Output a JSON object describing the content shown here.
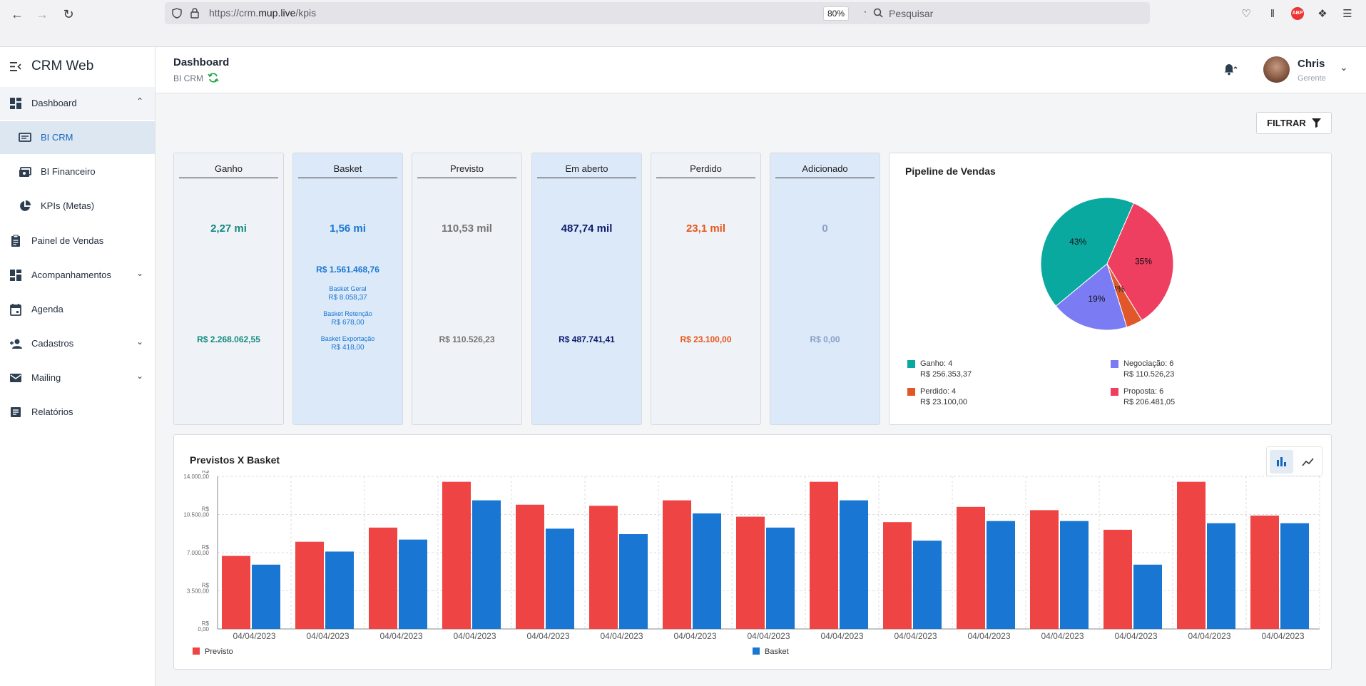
{
  "browser": {
    "url_prefix": "https://crm.",
    "url_domain": "mup.live",
    "url_path": "/kpis",
    "zoom": "80%",
    "search_placeholder": "Pesquisar"
  },
  "sidebar": {
    "brand": "CRM Web",
    "items": [
      {
        "label": "Dashboard",
        "icon": "dashboard-icon"
      },
      {
        "label": "BI CRM",
        "icon": "monitor-icon"
      },
      {
        "label": "BI Financeiro",
        "icon": "money-icon"
      },
      {
        "label": "KPIs (Metas)",
        "icon": "pie-icon"
      },
      {
        "label": "Painel de Vendas",
        "icon": "clipboard-icon"
      },
      {
        "label": "Acompanhamentos",
        "icon": "dashboard-icon"
      },
      {
        "label": "Agenda",
        "icon": "calendar-icon"
      },
      {
        "label": "Cadastros",
        "icon": "person-add-icon"
      },
      {
        "label": "Mailing",
        "icon": "mail-icon"
      },
      {
        "label": "Relatórios",
        "icon": "report-icon"
      }
    ]
  },
  "header": {
    "title": "Dashboard",
    "subtitle": "BI CRM",
    "user_name": "Chris",
    "user_role": "Gerente"
  },
  "filter_label": "FILTRAR",
  "kpis": [
    {
      "title": "Ganho",
      "big": "2,27 mi",
      "value": "R$ 2.268.062,55",
      "color": "#138a80"
    },
    {
      "title": "Basket",
      "big": "1,56 mi",
      "value": "R$ 1.561.468,76",
      "color": "#1976d2",
      "extras": [
        {
          "label": "Basket Geral",
          "value": "R$ 8.058,37"
        },
        {
          "label": "Basket Retenção",
          "value": "R$ 678,00"
        },
        {
          "label": "Basket Exportação",
          "value": "R$ 418,00"
        }
      ]
    },
    {
      "title": "Previsto",
      "big": "110,53 mil",
      "value": "R$ 110.526,23",
      "color": "#757575"
    },
    {
      "title": "Em aberto",
      "big": "487,74 mil",
      "value": "R$ 487.741,41",
      "color": "#0d1a6e"
    },
    {
      "title": "Perdido",
      "big": "23,1 mil",
      "value": "R$ 23.100,00",
      "color": "#e8561c"
    },
    {
      "title": "Adicionado",
      "big": "0",
      "value": "R$ 0,00",
      "color": "#8a9fc7"
    }
  ],
  "pipeline": {
    "title": "Pipeline de Vendas",
    "chart_data": {
      "type": "pie",
      "slices": [
        {
          "label": "Ganho",
          "percent": 43,
          "color": "#0aa99f"
        },
        {
          "label": "Proposta",
          "percent": 35,
          "color": "#ee3f60"
        },
        {
          "label": "Perdido",
          "percent": 4,
          "color": "#e0582a"
        },
        {
          "label": "Negociação",
          "percent": 19,
          "color": "#7b7cf3"
        }
      ]
    },
    "legend": [
      {
        "label": "Ganho: 4",
        "value": "R$ 256.353,37",
        "color": "#0aa99f"
      },
      {
        "label": "Negociação: 6",
        "value": "R$ 110.526,23",
        "color": "#7b7cf3"
      },
      {
        "label": "Perdido: 4",
        "value": "R$ 23.100,00",
        "color": "#e0582a"
      },
      {
        "label": "Proposta: 6",
        "value": "R$ 206.481,05",
        "color": "#ee3f60"
      }
    ]
  },
  "bar_chart": {
    "title": "Previstos X Basket",
    "chart_data": {
      "type": "bar",
      "categories": [
        "04/04/2023",
        "04/04/2023",
        "04/04/2023",
        "04/04/2023",
        "04/04/2023",
        "04/04/2023",
        "04/04/2023",
        "04/04/2023",
        "04/04/2023",
        "04/04/2023",
        "04/04/2023",
        "04/04/2023",
        "04/04/2023",
        "04/04/2023",
        "04/04/2023"
      ],
      "series": [
        {
          "name": "Previsto",
          "color": "#ef4444",
          "values": [
            6700,
            8000,
            9300,
            13500,
            11400,
            11300,
            11800,
            10300,
            13500,
            9800,
            11200,
            10900,
            9100,
            13500,
            10400
          ]
        },
        {
          "name": "Basket",
          "color": "#1976d2",
          "values": [
            5900,
            7100,
            8200,
            11800,
            9200,
            8700,
            10600,
            9300,
            11800,
            8100,
            9900,
            9900,
            5900,
            9700,
            9700
          ]
        }
      ],
      "ylim": [
        0,
        14000
      ],
      "yticks": [
        {
          "v": 0,
          "label": "R$ 0,00"
        },
        {
          "v": 3500,
          "label": "R$ 3.500,00"
        },
        {
          "v": 7000,
          "label": "R$ 7.000,00"
        },
        {
          "v": 10500,
          "label": "R$ 10.500,00"
        },
        {
          "v": 14000,
          "label": "R$ 14.000,00"
        }
      ]
    }
  }
}
